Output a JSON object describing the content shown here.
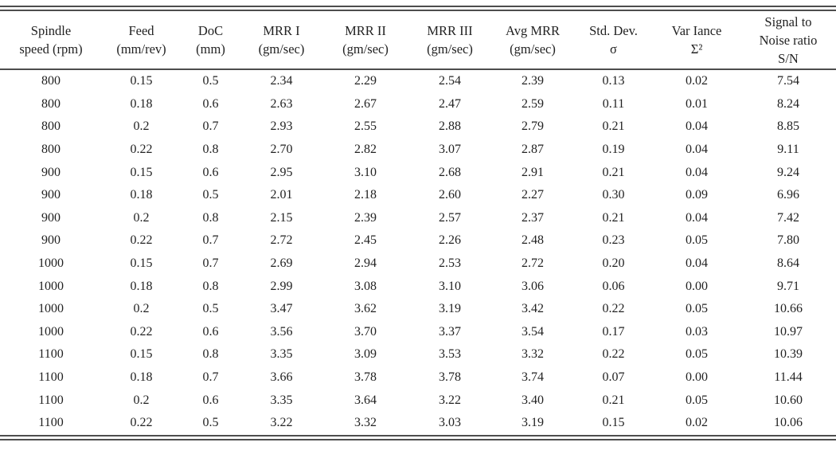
{
  "page": {
    "background_color": "#ffffff",
    "text_color": "#222222",
    "rule_color": "#4d4d4d"
  },
  "table": {
    "columns": [
      {
        "lines": [
          "Spindle",
          "speed (rpm)"
        ]
      },
      {
        "lines": [
          "Feed",
          "(mm/rev)"
        ]
      },
      {
        "lines": [
          "DoC",
          "(mm)"
        ]
      },
      {
        "lines": [
          "MRR I",
          "(gm/sec)"
        ]
      },
      {
        "lines": [
          "MRR II",
          "(gm/sec)"
        ]
      },
      {
        "lines": [
          "MRR III",
          "(gm/sec)"
        ]
      },
      {
        "lines": [
          "Avg MRR",
          "(gm/sec)"
        ]
      },
      {
        "lines": [
          "Std. Dev.",
          "σ"
        ]
      },
      {
        "lines": [
          "Var Iance",
          "Σ²"
        ]
      },
      {
        "lines": [
          "Signal to",
          "Noise ratio",
          "S/N"
        ]
      }
    ],
    "rows": [
      [
        "800",
        "0.15",
        "0.5",
        "2.34",
        "2.29",
        "2.54",
        "2.39",
        "0.13",
        "0.02",
        "7.54"
      ],
      [
        "800",
        "0.18",
        "0.6",
        "2.63",
        "2.67",
        "2.47",
        "2.59",
        "0.11",
        "0.01",
        "8.24"
      ],
      [
        "800",
        "0.2",
        "0.7",
        "2.93",
        "2.55",
        "2.88",
        "2.79",
        "0.21",
        "0.04",
        "8.85"
      ],
      [
        "800",
        "0.22",
        "0.8",
        "2.70",
        "2.82",
        "3.07",
        "2.87",
        "0.19",
        "0.04",
        "9.11"
      ],
      [
        "900",
        "0.15",
        "0.6",
        "2.95",
        "3.10",
        "2.68",
        "2.91",
        "0.21",
        "0.04",
        "9.24"
      ],
      [
        "900",
        "0.18",
        "0.5",
        "2.01",
        "2.18",
        "2.60",
        "2.27",
        "0.30",
        "0.09",
        "6.96"
      ],
      [
        "900",
        "0.2",
        "0.8",
        "2.15",
        "2.39",
        "2.57",
        "2.37",
        "0.21",
        "0.04",
        "7.42"
      ],
      [
        "900",
        "0.22",
        "0.7",
        "2.72",
        "2.45",
        "2.26",
        "2.48",
        "0.23",
        "0.05",
        "7.80"
      ],
      [
        "1000",
        "0.15",
        "0.7",
        "2.69",
        "2.94",
        "2.53",
        "2.72",
        "0.20",
        "0.04",
        "8.64"
      ],
      [
        "1000",
        "0.18",
        "0.8",
        "2.99",
        "3.08",
        "3.10",
        "3.06",
        "0.06",
        "0.00",
        "9.71"
      ],
      [
        "1000",
        "0.2",
        "0.5",
        "3.47",
        "3.62",
        "3.19",
        "3.42",
        "0.22",
        "0.05",
        "10.66"
      ],
      [
        "1000",
        "0.22",
        "0.6",
        "3.56",
        "3.70",
        "3.37",
        "3.54",
        "0.17",
        "0.03",
        "10.97"
      ],
      [
        "1100",
        "0.15",
        "0.8",
        "3.35",
        "3.09",
        "3.53",
        "3.32",
        "0.22",
        "0.05",
        "10.39"
      ],
      [
        "1100",
        "0.18",
        "0.7",
        "3.66",
        "3.78",
        "3.78",
        "3.74",
        "0.07",
        "0.00",
        "11.44"
      ],
      [
        "1100",
        "0.2",
        "0.6",
        "3.35",
        "3.64",
        "3.22",
        "3.40",
        "0.21",
        "0.05",
        "10.60"
      ],
      [
        "1100",
        "0.22",
        "0.5",
        "3.22",
        "3.32",
        "3.03",
        "3.19",
        "0.15",
        "0.02",
        "10.06"
      ]
    ]
  }
}
